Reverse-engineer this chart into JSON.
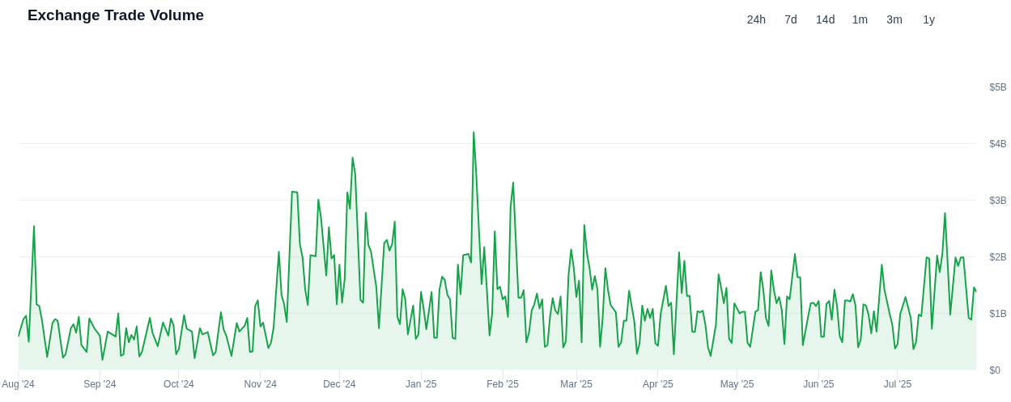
{
  "chart_data": {
    "type": "area",
    "title": "Exchange Trade Volume",
    "annotations": [
      "24h",
      "7d",
      "14d",
      "1m",
      "3m",
      "1y"
    ],
    "x": [
      "2024-08-01",
      "2024-08-03",
      "2024-08-04",
      "2024-08-05",
      "2024-08-07",
      "2024-08-08",
      "2024-08-09",
      "2024-08-10",
      "2024-08-12",
      "2024-08-14",
      "2024-08-15",
      "2024-08-16",
      "2024-08-18",
      "2024-08-19",
      "2024-08-21",
      "2024-08-22",
      "2024-08-23",
      "2024-08-24",
      "2024-08-25",
      "2024-08-27",
      "2024-08-28",
      "2024-08-30",
      "2024-09-01",
      "2024-09-02",
      "2024-09-04",
      "2024-09-07",
      "2024-09-08",
      "2024-09-09",
      "2024-09-10",
      "2024-09-11",
      "2024-09-12",
      "2024-09-13",
      "2024-09-14",
      "2024-09-15",
      "2024-09-16",
      "2024-09-17",
      "2024-09-20",
      "2024-09-21",
      "2024-09-23",
      "2024-09-25",
      "2024-09-27",
      "2024-09-28",
      "2024-09-29",
      "2024-09-30",
      "2024-10-01",
      "2024-10-03",
      "2024-10-04",
      "2024-10-06",
      "2024-10-07",
      "2024-10-09",
      "2024-10-10",
      "2024-10-12",
      "2024-10-14",
      "2024-10-15",
      "2024-10-17",
      "2024-10-18",
      "2024-10-19",
      "2024-10-21",
      "2024-10-23",
      "2024-10-24",
      "2024-10-26",
      "2024-10-27",
      "2024-10-28",
      "2024-10-29",
      "2024-10-30",
      "2024-10-31",
      "2024-11-01",
      "2024-11-02",
      "2024-11-04",
      "2024-11-05",
      "2024-11-06",
      "2024-11-08",
      "2024-11-09",
      "2024-11-10",
      "2024-11-11",
      "2024-11-13",
      "2024-11-15",
      "2024-11-16",
      "2024-11-17",
      "2024-11-18",
      "2024-11-19",
      "2024-11-20",
      "2024-11-22",
      "2024-11-23",
      "2024-11-24",
      "2024-11-26",
      "2024-11-27",
      "2024-11-28",
      "2024-11-29",
      "2024-11-30",
      "2024-12-01",
      "2024-12-02",
      "2024-12-03",
      "2024-12-04",
      "2024-12-05",
      "2024-12-06",
      "2024-12-07",
      "2024-12-09",
      "2024-12-10",
      "2024-12-11",
      "2024-12-12",
      "2024-12-13",
      "2024-12-15",
      "2024-12-16",
      "2024-12-18",
      "2024-12-19",
      "2024-12-20",
      "2024-12-21",
      "2024-12-22",
      "2024-12-23",
      "2024-12-24",
      "2024-12-25",
      "2024-12-26",
      "2024-12-27",
      "2024-12-29",
      "2024-12-30",
      "2024-12-31",
      "2025-01-01",
      "2025-01-02",
      "2025-01-03",
      "2025-01-05",
      "2025-01-06",
      "2025-01-07",
      "2025-01-08",
      "2025-01-09",
      "2025-01-10",
      "2025-01-11",
      "2025-01-12",
      "2025-01-13",
      "2025-01-14",
      "2025-01-15",
      "2025-01-16",
      "2025-01-17",
      "2025-01-19",
      "2025-01-20",
      "2025-01-21",
      "2025-01-22",
      "2025-01-23",
      "2025-01-24",
      "2025-01-25",
      "2025-01-26",
      "2025-01-27",
      "2025-01-28",
      "2025-01-29",
      "2025-01-30",
      "2025-01-31",
      "2025-02-01",
      "2025-02-02",
      "2025-02-03",
      "2025-02-04",
      "2025-02-05",
      "2025-02-06",
      "2025-02-07",
      "2025-02-08",
      "2025-02-09",
      "2025-02-10",
      "2025-02-11",
      "2025-02-12",
      "2025-02-13",
      "2025-02-14",
      "2025-02-15",
      "2025-02-16",
      "2025-02-17",
      "2025-02-18",
      "2025-02-19",
      "2025-02-20",
      "2025-02-21",
      "2025-02-22",
      "2025-02-23",
      "2025-02-24",
      "2025-02-25",
      "2025-02-26",
      "2025-02-27",
      "2025-02-28",
      "2025-03-01",
      "2025-03-02",
      "2025-03-03",
      "2025-03-04",
      "2025-03-05",
      "2025-03-06",
      "2025-03-07",
      "2025-03-08",
      "2025-03-09",
      "2025-03-10",
      "2025-03-11",
      "2025-03-12",
      "2025-03-13",
      "2025-03-14",
      "2025-03-16",
      "2025-03-17",
      "2025-03-18",
      "2025-03-19",
      "2025-03-20",
      "2025-03-21",
      "2025-03-23",
      "2025-03-24",
      "2025-03-25",
      "2025-03-26",
      "2025-03-27",
      "2025-03-28",
      "2025-03-29",
      "2025-03-30",
      "2025-03-31",
      "2025-04-01",
      "2025-04-02",
      "2025-04-04",
      "2025-04-05",
      "2025-04-06",
      "2025-04-07",
      "2025-04-09",
      "2025-04-10",
      "2025-04-11",
      "2025-04-12",
      "2025-04-13",
      "2025-04-14",
      "2025-04-15",
      "2025-04-16",
      "2025-04-17",
      "2025-04-18",
      "2025-04-19",
      "2025-04-20",
      "2025-04-21",
      "2025-04-23",
      "2025-04-24",
      "2025-04-25",
      "2025-04-26",
      "2025-04-27",
      "2025-04-28",
      "2025-04-29",
      "2025-04-30",
      "2025-05-02",
      "2025-05-03",
      "2025-05-04",
      "2025-05-05",
      "2025-05-06",
      "2025-05-08",
      "2025-05-09",
      "2025-05-10",
      "2025-05-11",
      "2025-05-12",
      "2025-05-13",
      "2025-05-14",
      "2025-05-15",
      "2025-05-16",
      "2025-05-17",
      "2025-05-18",
      "2025-05-19",
      "2025-05-20",
      "2025-05-21",
      "2025-05-23",
      "2025-05-24",
      "2025-05-25",
      "2025-05-26",
      "2025-05-28",
      "2025-05-29",
      "2025-05-30",
      "2025-05-31",
      "2025-06-01",
      "2025-06-02",
      "2025-06-03",
      "2025-06-04",
      "2025-06-05",
      "2025-06-06",
      "2025-06-07",
      "2025-06-08",
      "2025-06-09",
      "2025-06-10",
      "2025-06-11",
      "2025-06-12",
      "2025-06-13",
      "2025-06-14",
      "2025-06-15",
      "2025-06-16",
      "2025-06-17",
      "2025-06-18",
      "2025-06-19",
      "2025-06-20",
      "2025-06-21",
      "2025-06-22",
      "2025-06-23",
      "2025-06-25",
      "2025-06-26",
      "2025-06-28",
      "2025-06-29",
      "2025-06-30",
      "2025-07-01",
      "2025-07-02",
      "2025-07-04",
      "2025-07-06",
      "2025-07-07",
      "2025-07-08",
      "2025-07-09",
      "2025-07-10",
      "2025-07-12",
      "2025-07-13",
      "2025-07-14",
      "2025-07-16",
      "2025-07-17",
      "2025-07-18",
      "2025-07-19",
      "2025-07-20",
      "2025-07-21",
      "2025-07-23",
      "2025-07-24",
      "2025-07-25",
      "2025-07-26",
      "2025-07-28",
      "2025-07-29",
      "2025-07-30",
      "2025-07-31"
    ],
    "series": [
      {
        "color": "#16a34a",
        "values": [
          0.59,
          0.9,
          0.96,
          0.5,
          2.54,
          1.16,
          1.13,
          0.89,
          0.23,
          0.83,
          0.9,
          0.87,
          0.22,
          0.28,
          0.74,
          0.81,
          0.66,
          0.94,
          0.44,
          0.32,
          0.91,
          0.73,
          0.61,
          0.18,
          0.68,
          0.59,
          1.0,
          0.25,
          0.28,
          0.74,
          0.49,
          0.62,
          0.54,
          0.77,
          0.24,
          0.32,
          0.92,
          0.66,
          0.42,
          0.84,
          0.61,
          0.91,
          0.79,
          0.28,
          0.37,
          0.97,
          0.73,
          0.68,
          0.21,
          0.74,
          0.63,
          0.67,
          0.26,
          0.32,
          1.02,
          0.72,
          0.61,
          0.25,
          0.83,
          0.68,
          0.78,
          0.92,
          0.32,
          0.33,
          1.13,
          1.23,
          0.77,
          0.84,
          0.39,
          0.48,
          0.75,
          2.09,
          1.33,
          1.16,
          0.85,
          3.15,
          3.14,
          2.22,
          1.99,
          1.42,
          1.15,
          2.03,
          2.01,
          3.01,
          2.69,
          1.67,
          2.52,
          1.97,
          2.03,
          1.16,
          1.86,
          1.19,
          1.61,
          3.14,
          2.85,
          3.75,
          3.46,
          1.24,
          1.19,
          2.78,
          2.21,
          2.09,
          1.47,
          0.74,
          2.24,
          2.3,
          2.11,
          2.22,
          2.62,
          0.94,
          0.81,
          1.43,
          1.25,
          0.63,
          1.14,
          0.55,
          0.63,
          1.38,
          1.08,
          0.72,
          1.38,
          0.57,
          0.57,
          1.42,
          1.65,
          1.59,
          1.33,
          1.25,
          0.57,
          0.55,
          1.86,
          1.34,
          2.03,
          2.05,
          1.9,
          4.2,
          3.43,
          2.47,
          1.52,
          2.17,
          1.42,
          0.61,
          0.99,
          2.45,
          1.43,
          1.47,
          1.25,
          1.3,
          0.94,
          2.88,
          3.31,
          2.28,
          1.28,
          1.28,
          1.41,
          0.49,
          0.66,
          1.05,
          1.16,
          1.35,
          1.09,
          1.25,
          0.41,
          0.44,
          0.94,
          1.27,
          1.05,
          0.99,
          1.3,
          0.4,
          0.51,
          1.67,
          2.13,
          1.81,
          1.29,
          1.58,
          0.49,
          2.56,
          2.07,
          1.8,
          1.42,
          1.66,
          1.42,
          0.41,
          0.94,
          1.8,
          1.42,
          1.15,
          1.02,
          0.41,
          0.49,
          0.87,
          0.87,
          1.4,
          0.86,
          0.29,
          0.47,
          1.14,
          0.87,
          1.08,
          0.92,
          1.08,
          0.47,
          0.43,
          0.99,
          1.49,
          1.13,
          1.19,
          0.28,
          2.08,
          1.36,
          1.93,
          1.31,
          1.31,
          0.68,
          0.67,
          1.04,
          1.02,
          1.05,
          0.8,
          0.4,
          0.25,
          0.8,
          1.69,
          1.45,
          1.18,
          1.45,
          0.55,
          0.48,
          1.18,
          1.0,
          1.03,
          1.03,
          0.48,
          0.41,
          1.03,
          1.06,
          1.73,
          1.42,
          0.92,
          0.78,
          1.76,
          1.42,
          1.18,
          1.29,
          1.06,
          0.46,
          1.3,
          1.25,
          2.05,
          1.64,
          1.64,
          0.44,
          0.94,
          1.18,
          1.19,
          1.13,
          1.22,
          0.59,
          0.59,
          1.17,
          1.22,
          0.89,
          1.42,
          1.13,
          0.6,
          0.49,
          1.23,
          1.23,
          1.21,
          1.34,
          1.14,
          0.4,
          0.54,
          1.16,
          1.14,
          0.97,
          0.65,
          1.04,
          0.68,
          1.86,
          1.42,
          0.99,
          0.8,
          0.38,
          0.46,
          0.99,
          1.29,
          0.92,
          0.37,
          0.49,
          0.98,
          0.95,
          1.99,
          1.97,
          0.73,
          2.02,
          1.73,
          2.05,
          2.77,
          1.9,
          0.98,
          1.99,
          1.84,
          1.99,
          1.99,
          0.92,
          0.89,
          1.46,
          1.38
        ]
      }
    ],
    "xlim": [
      "2024-08-01",
      "2025-07-31"
    ],
    "xticks": [
      {
        "value": "2024-08-01",
        "label": "Aug '24"
      },
      {
        "value": "2024-09-01",
        "label": "Sep '24"
      },
      {
        "value": "2024-10-01",
        "label": "Oct '24"
      },
      {
        "value": "2024-11-01",
        "label": "Nov '24"
      },
      {
        "value": "2024-12-01",
        "label": "Dec '24"
      },
      {
        "value": "2025-01-01",
        "label": "Jan '25"
      },
      {
        "value": "2025-02-01",
        "label": "Feb '25"
      },
      {
        "value": "2025-03-01",
        "label": "Mar '25"
      },
      {
        "value": "2025-04-01",
        "label": "Apr '25"
      },
      {
        "value": "2025-05-01",
        "label": "May '25"
      },
      {
        "value": "2025-06-01",
        "label": "Jun '25"
      },
      {
        "value": "2025-07-01",
        "label": "Jul '25"
      }
    ],
    "ylim": [
      0,
      5
    ],
    "yticks": [
      {
        "value": 0,
        "label": "$0"
      },
      {
        "value": 1,
        "label": "$1B"
      },
      {
        "value": 2,
        "label": "$2B"
      },
      {
        "value": 3,
        "label": "$3B"
      },
      {
        "value": 4,
        "label": "$4B"
      },
      {
        "value": 5,
        "label": "$5B"
      }
    ],
    "grid": "y",
    "marker": "none",
    "line_style": "solid"
  }
}
